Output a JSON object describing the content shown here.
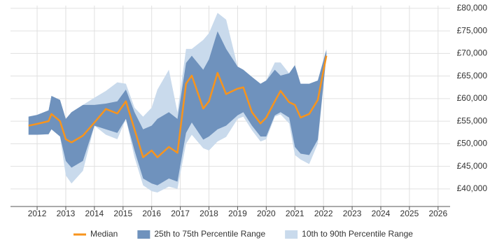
{
  "chart_data": {
    "type": "line",
    "x": [
      2011.7,
      2012.0,
      2012.4,
      2012.5,
      2012.8,
      2013.0,
      2013.2,
      2013.6,
      2014.0,
      2014.4,
      2014.8,
      2015.1,
      2015.4,
      2015.7,
      2016.0,
      2016.2,
      2016.6,
      2016.9,
      2017.2,
      2017.4,
      2017.8,
      2018.0,
      2018.3,
      2018.6,
      2019.0,
      2019.2,
      2019.5,
      2019.8,
      2020.0,
      2020.3,
      2020.5,
      2020.8,
      2021.0,
      2021.2,
      2021.5,
      2021.8,
      2022.1
    ],
    "series": [
      {
        "name": "10th to 90th Percentile Range",
        "color": "#c9daec",
        "low": [
          52000,
          52000,
          52100,
          53200,
          51600,
          43000,
          41200,
          44000,
          54000,
          52000,
          51000,
          55500,
          47000,
          40800,
          39500,
          39200,
          40500,
          40000,
          50000,
          52000,
          49000,
          48500,
          50500,
          51500,
          55500,
          56000,
          53000,
          50500,
          51000,
          56000,
          56500,
          54500,
          47500,
          46500,
          45500,
          50000,
          69500
        ],
        "high": [
          56000,
          56400,
          57400,
          60600,
          59700,
          55500,
          57000,
          58600,
          60200,
          61700,
          63600,
          63300,
          58000,
          56000,
          58000,
          62000,
          66400,
          57000,
          71000,
          71000,
          73000,
          74500,
          79000,
          77500,
          67100,
          66400,
          64800,
          63300,
          64000,
          68000,
          68000,
          65600,
          67400,
          63300,
          63000,
          64000,
          71000
        ]
      },
      {
        "name": "25th to 75th Percentile Range",
        "color": "#6f92bd",
        "low": [
          52000,
          52000,
          52100,
          53200,
          51600,
          46200,
          44700,
          46200,
          54000,
          53200,
          52400,
          55500,
          48500,
          42300,
          41200,
          40800,
          42300,
          41600,
          52400,
          54700,
          50900,
          51600,
          53200,
          54000,
          56300,
          57000,
          54000,
          51600,
          51600,
          56300,
          57000,
          55800,
          49300,
          47800,
          47500,
          50900,
          69500
        ],
        "high": [
          56000,
          56400,
          57400,
          60600,
          59700,
          55500,
          57000,
          58600,
          58600,
          58900,
          59400,
          62000,
          57000,
          53200,
          54000,
          55500,
          57000,
          55500,
          67900,
          69500,
          66400,
          68700,
          74900,
          71000,
          67100,
          66400,
          64800,
          63300,
          64000,
          66400,
          65100,
          65600,
          67400,
          63300,
          63300,
          64000,
          70700
        ]
      },
      {
        "name": "Median",
        "color": "#f7941d",
        "values": [
          54000,
          54400,
          55000,
          56600,
          55000,
          51000,
          50300,
          51800,
          54700,
          57700,
          56700,
          59400,
          53200,
          47000,
          48500,
          47000,
          49300,
          48000,
          63300,
          65100,
          57800,
          59400,
          65700,
          61000,
          62200,
          62500,
          57000,
          54500,
          55800,
          59400,
          61700,
          59200,
          58600,
          55800,
          56600,
          59700,
          69500
        ]
      }
    ],
    "xlim": [
      2011.07,
      2026.42
    ],
    "xticks": [
      2012,
      2013,
      2014,
      2015,
      2016,
      2017,
      2018,
      2019,
      2020,
      2021,
      2022,
      2023,
      2024,
      2025,
      2026
    ],
    "ylim": [
      36100,
      80600
    ],
    "yticks": [
      {
        "value": 40000,
        "label": "£40,000"
      },
      {
        "value": 45000,
        "label": "£45,000"
      },
      {
        "value": 50000,
        "label": "£50,000"
      },
      {
        "value": 55000,
        "label": "£55,000"
      },
      {
        "value": 60000,
        "label": "£60,000"
      },
      {
        "value": 65000,
        "label": "£65,000"
      },
      {
        "value": 70000,
        "label": "£70,000"
      },
      {
        "value": 75000,
        "label": "£75,000"
      },
      {
        "value": 80000,
        "label": "£80,000"
      }
    ],
    "grid": true,
    "legend": "bottom"
  }
}
